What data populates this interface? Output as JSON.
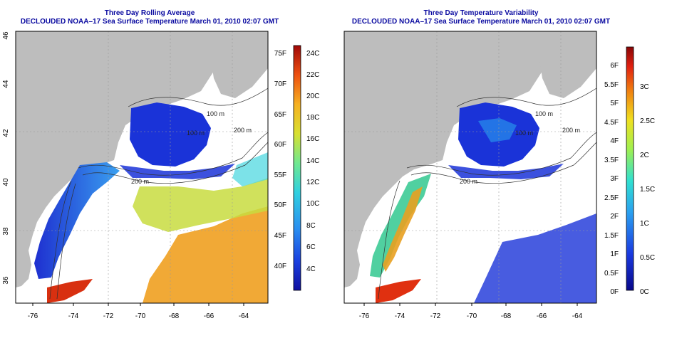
{
  "panels": [
    {
      "title": "Three Day Rolling Average",
      "subtitle": "DECLOUDED NOAA–17 Sea Surface Temperature March 01, 2010 02:07 GMT",
      "colorbar": {
        "left_labels": [
          "75F",
          "70F",
          "65F",
          "60F",
          "55F",
          "50F",
          "45F",
          "40F"
        ],
        "right_labels": [
          "24C",
          "22C",
          "20C",
          "18C",
          "16C",
          "14C",
          "12C",
          "10C",
          "8C",
          "6C",
          "4C"
        ]
      }
    },
    {
      "title": "Three Day Temperature Variability",
      "subtitle": "DECLOUDED NOAA–17 Sea Surface Temperature March 01, 2010 02:07 GMT",
      "colorbar": {
        "left_labels": [
          "6F",
          "5.5F",
          "5F",
          "4.5F",
          "4F",
          "3.5F",
          "3F",
          "2.5F",
          "2F",
          "1.5F",
          "1F",
          "0.5F",
          "0F"
        ],
        "right_labels": [
          "3C",
          "2.5C",
          "2C",
          "1.5C",
          "1C",
          "0.5C",
          "0C"
        ]
      }
    }
  ],
  "lon_ticks": [
    "-76",
    "-74",
    "-72",
    "-70",
    "-68",
    "-66",
    "-64"
  ],
  "lat_ticks": [
    "46",
    "44",
    "42",
    "40",
    "38",
    "36"
  ],
  "contour_labels": [
    "100 m",
    "100 m",
    "200 m",
    "200 m"
  ],
  "colors": {
    "land": "#bdbdbd",
    "title": "#0a0aa0",
    "ocean": "#ffffff"
  }
}
